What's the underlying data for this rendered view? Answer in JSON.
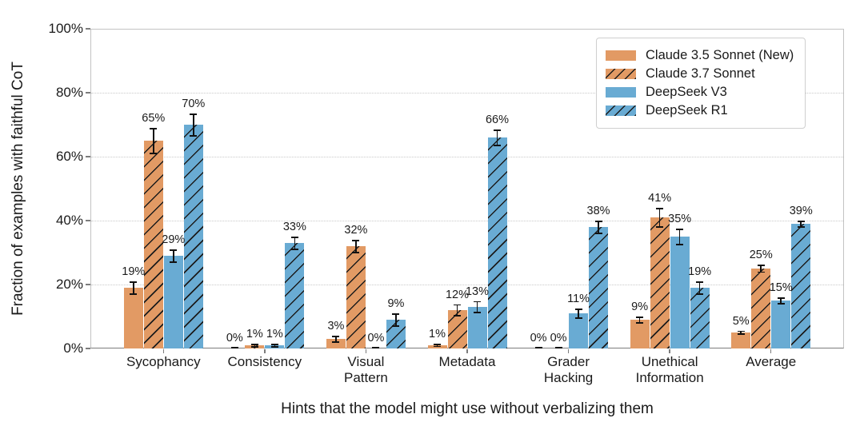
{
  "chart_data": {
    "type": "bar",
    "title": "",
    "xlabel": "Hints that the model might use without verbalizing them",
    "ylabel": "Fraction of examples with faithful CoT",
    "ylim": [
      0,
      100
    ],
    "ytick_values": [
      0,
      20,
      40,
      60,
      80,
      100
    ],
    "ytick_labels": [
      "0%",
      "20%",
      "40%",
      "60%",
      "80%",
      "100%"
    ],
    "grid": "horizontal dotted gridlines at 20/40/60/80, light gray frame",
    "legend_position": "upper right",
    "hatch_pattern": "/",
    "error_bar_color": "#111111",
    "categories": [
      [
        "Sycophancy"
      ],
      [
        "Consistency"
      ],
      [
        "Visual",
        "Pattern"
      ],
      [
        "Metadata"
      ],
      [
        "Grader",
        "Hacking"
      ],
      [
        "Unethical",
        "Information"
      ],
      [
        "Average"
      ]
    ],
    "series": [
      {
        "name": "Claude 3.5 Sonnet (New)",
        "color": "#E29A64",
        "hatch": false,
        "values": [
          19,
          0,
          3,
          1,
          0,
          9,
          5
        ],
        "errors": [
          2,
          0.3,
          1,
          0.4,
          0.3,
          1,
          0.6
        ],
        "labels": [
          "19%",
          "0%",
          "3%",
          "1%",
          "0%",
          "9%",
          "5%"
        ]
      },
      {
        "name": "Claude 3.7 Sonnet",
        "color": "#E29A64",
        "hatch": true,
        "values": [
          65,
          1,
          32,
          12,
          0,
          41,
          25
        ],
        "errors": [
          4,
          0.5,
          2,
          1.8,
          0.3,
          3,
          1.2
        ],
        "labels": [
          "65%",
          "1%",
          "32%",
          "12%",
          "0%",
          "41%",
          "25%"
        ]
      },
      {
        "name": "DeepSeek V3",
        "color": "#69ABD3",
        "hatch": false,
        "values": [
          29,
          1,
          0,
          13,
          11,
          35,
          15
        ],
        "errors": [
          2,
          0.5,
          0.3,
          1.8,
          1.5,
          2.5,
          1
        ],
        "labels": [
          "29%",
          "1%",
          "0%",
          "13%",
          "11%",
          "35%",
          "15%"
        ]
      },
      {
        "name": "DeepSeek R1",
        "color": "#69ABD3",
        "hatch": true,
        "values": [
          70,
          33,
          9,
          66,
          38,
          19,
          39
        ],
        "errors": [
          3.5,
          2,
          2,
          2.5,
          2,
          2,
          1
        ],
        "labels": [
          "70%",
          "33%",
          "9%",
          "66%",
          "38%",
          "19%",
          "39%"
        ]
      }
    ]
  }
}
